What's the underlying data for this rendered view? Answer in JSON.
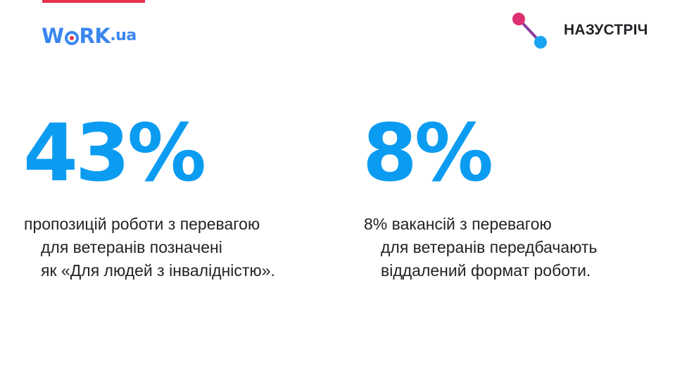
{
  "header": {
    "logo": {
      "letter_w": "W",
      "letters_rk": "RK",
      "suffix": ".ua",
      "brand_blue": "#3a86f0",
      "brand_red": "#e4314e"
    },
    "partner": {
      "name": "НАЗУСТРІЧ",
      "icon": "connection-nodes-icon",
      "dot_pink": "#dd2f71",
      "dot_blue": "#1aa4f4",
      "line_color": "#8a3f9a"
    }
  },
  "stats": [
    {
      "value": "43%",
      "lines": [
        "пропозицій роботи з перевагою",
        "для ветеранів позначені",
        "як «Для людей з інвалідністю»."
      ]
    },
    {
      "value": "8%",
      "lines": [
        "8% вакансій з перевагою",
        "для ветеранів передбачають",
        "віддалений формат роботи."
      ]
    }
  ],
  "colors": {
    "accent_blue": "#0b9cf2",
    "text": "#222327",
    "top_bar": "#e4314e"
  }
}
